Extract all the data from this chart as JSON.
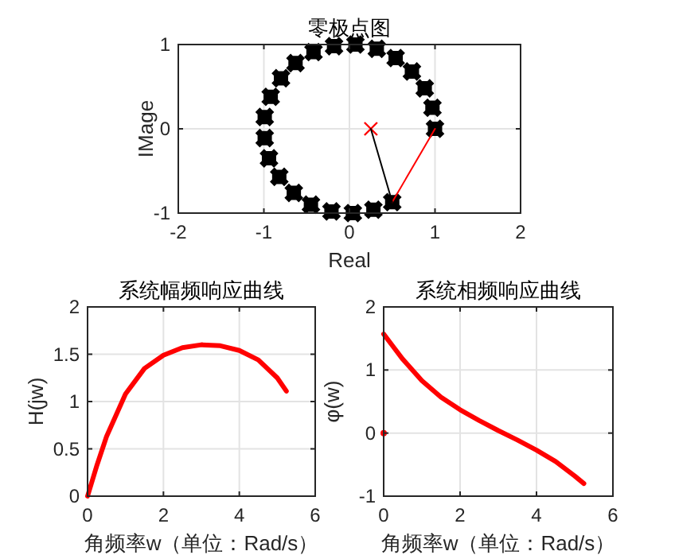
{
  "chart_data": [
    {
      "type": "scatter",
      "title": "零极点图",
      "xlabel": "Real",
      "ylabel": "IMage",
      "xlim": [
        -2,
        2
      ],
      "xticks": [
        -2,
        -1,
        0,
        1,
        2
      ],
      "ylim": [
        -1,
        1
      ],
      "yticks": [
        -1,
        0,
        1
      ],
      "grid": true,
      "series": [
        {
          "color": "#000000",
          "marker": "cross",
          "x": [
            1,
            0.97,
            0.88,
            0.73,
            0.54,
            0.32,
            0.07,
            -0.18,
            -0.42,
            -0.63,
            -0.8,
            -0.92,
            -0.99,
            -0.99,
            -0.94,
            -0.82,
            -0.65,
            -0.45,
            -0.21,
            0.04,
            0.28,
            0.5
          ],
          "values": [
            0,
            0.25,
            0.48,
            0.68,
            0.84,
            0.95,
            1,
            0.98,
            0.91,
            0.78,
            0.6,
            0.38,
            0.14,
            -0.11,
            -0.35,
            -0.57,
            -0.76,
            -0.9,
            -0.98,
            -1,
            -0.96,
            -0.87
          ]
        },
        {
          "color": "#ff0000",
          "marker": "cross",
          "x": [
            0.25
          ],
          "values": [
            0
          ]
        },
        {
          "type": "line",
          "color": "#ff0000",
          "marker": "none",
          "x": [
            1,
            0.5
          ],
          "values": [
            0,
            -0.87
          ]
        },
        {
          "type": "line",
          "color": "#000000",
          "marker": "none",
          "x": [
            0.25,
            0.5
          ],
          "values": [
            0,
            -0.87
          ]
        }
      ]
    },
    {
      "type": "line",
      "title": "系统幅频响应曲线",
      "xlabel": "角频率w（单位：Rad/s）",
      "ylabel": "H(jw)",
      "xlim": [
        0,
        6
      ],
      "xticks": [
        0,
        2,
        4,
        6
      ],
      "ylim": [
        0,
        2
      ],
      "yticks": [
        0,
        0.5,
        1,
        1.5,
        2
      ],
      "grid": true,
      "series": [
        {
          "color": "#ff0000",
          "x": [
            0,
            0.25,
            0.5,
            1,
            1.5,
            2,
            2.5,
            3,
            3.5,
            4,
            4.5,
            5,
            5.24
          ],
          "values": [
            0,
            0.33,
            0.63,
            1.08,
            1.35,
            1.49,
            1.57,
            1.6,
            1.59,
            1.54,
            1.44,
            1.25,
            1.11
          ]
        }
      ]
    },
    {
      "type": "line",
      "title": "系统相频响应曲线",
      "xlabel": "角频率w（单位：Rad/s）",
      "ylabel": "φ(w)",
      "xlim": [
        0,
        6
      ],
      "xticks": [
        0,
        2,
        4,
        6
      ],
      "ylim": [
        -1,
        2
      ],
      "yticks": [
        -1,
        0,
        1,
        2
      ],
      "grid": true,
      "series": [
        {
          "color": "#ff0000",
          "x": [
            0,
            0.25,
            0.5,
            1,
            1.5,
            2,
            2.5,
            3,
            3.5,
            4,
            4.5,
            5,
            5.24
          ],
          "values": [
            1.57,
            1.37,
            1.17,
            0.83,
            0.57,
            0.37,
            0.2,
            0.04,
            -0.11,
            -0.27,
            -0.45,
            -0.68,
            -0.8
          ]
        },
        {
          "type": "scatter",
          "color": "#ff0000",
          "marker": "circle",
          "x": [
            0
          ],
          "values": [
            0
          ]
        }
      ]
    }
  ]
}
